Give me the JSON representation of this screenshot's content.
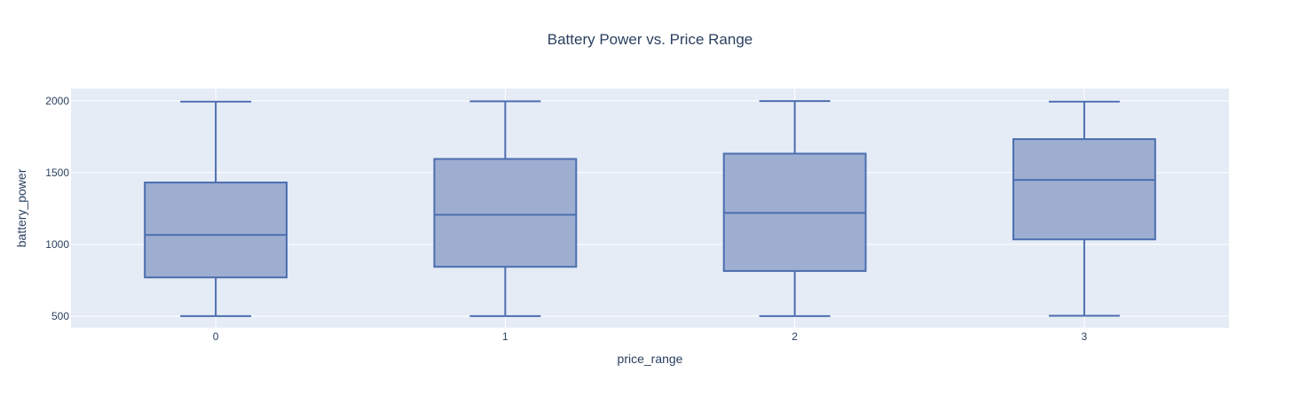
{
  "chart_data": {
    "type": "box",
    "title": "Battery Power vs. Price Range",
    "xlabel": "price_range",
    "ylabel": "battery_power",
    "categories": [
      "0",
      "1",
      "2",
      "3"
    ],
    "boxes": [
      {
        "category": "0",
        "min": 501,
        "q1": 770,
        "median": 1066,
        "q3": 1431,
        "max": 1994
      },
      {
        "category": "1",
        "min": 501,
        "q1": 844,
        "median": 1206,
        "q3": 1595,
        "max": 1996
      },
      {
        "category": "2",
        "min": 501,
        "q1": 815,
        "median": 1219,
        "q3": 1632,
        "max": 1998
      },
      {
        "category": "3",
        "min": 503,
        "q1": 1035,
        "median": 1449,
        "q3": 1733,
        "max": 1994
      }
    ],
    "y_ticks": [
      500,
      1000,
      1500,
      2000
    ],
    "ylim": [
      420,
      2085
    ],
    "grid": true,
    "colors": {
      "plot_background": "#e5ecf6",
      "box_line": "#4c6eaf",
      "box_fill": "#99abcf",
      "grid": "#ffffff",
      "text": "#2a3f5f"
    }
  }
}
